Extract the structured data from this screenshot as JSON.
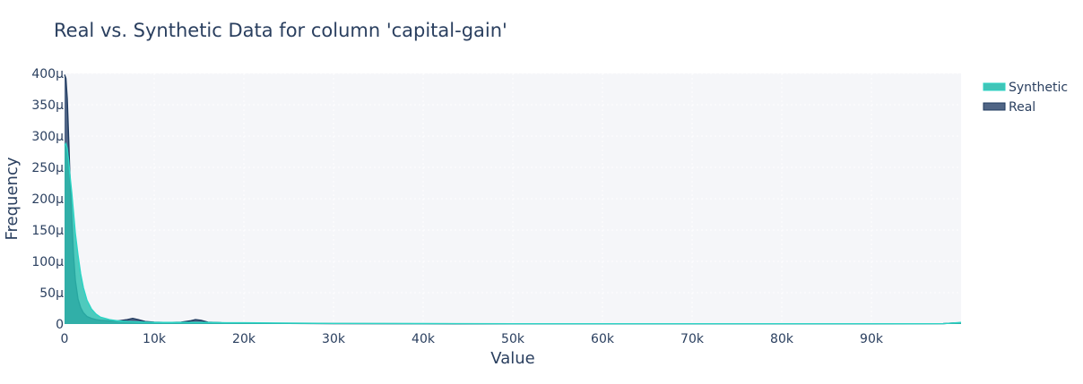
{
  "chart_data": {
    "type": "area",
    "title": "Real vs. Synthetic Data for column 'capital-gain'",
    "xlabel": "Value",
    "ylabel": "Frequency",
    "xlim": [
      0,
      100000
    ],
    "ylim": [
      0,
      400
    ],
    "y_unit": "μ",
    "x_ticks": [
      {
        "value": 0,
        "label": "0"
      },
      {
        "value": 10000,
        "label": "10k"
      },
      {
        "value": 20000,
        "label": "20k"
      },
      {
        "value": 30000,
        "label": "30k"
      },
      {
        "value": 40000,
        "label": "40k"
      },
      {
        "value": 50000,
        "label": "50k"
      },
      {
        "value": 60000,
        "label": "60k"
      },
      {
        "value": 70000,
        "label": "70k"
      },
      {
        "value": 80000,
        "label": "80k"
      },
      {
        "value": 90000,
        "label": "90k"
      }
    ],
    "y_ticks": [
      {
        "value": 0,
        "label": "0"
      },
      {
        "value": 50,
        "label": "50μ"
      },
      {
        "value": 100,
        "label": "100μ"
      },
      {
        "value": 150,
        "label": "150μ"
      },
      {
        "value": 200,
        "label": "200μ"
      },
      {
        "value": 250,
        "label": "250μ"
      },
      {
        "value": 300,
        "label": "300μ"
      },
      {
        "value": 350,
        "label": "350μ"
      },
      {
        "value": 400,
        "label": "400μ"
      }
    ],
    "grid": true,
    "legend_position": "top-right",
    "series": [
      {
        "name": "Real",
        "color": "#1f3a5f",
        "fill_color": "#3d5478",
        "x": [
          0,
          150,
          300,
          450,
          600,
          800,
          1000,
          1200,
          1500,
          1800,
          2100,
          2500,
          3000,
          3500,
          4000,
          5000,
          6000,
          7000,
          7600,
          8200,
          9000,
          10000,
          11000,
          12000,
          13000,
          14000,
          14600,
          15200,
          16000,
          17500,
          20000,
          25000,
          30000,
          40000,
          50000,
          60000,
          70000,
          80000,
          90000,
          98000,
          99000,
          100000
        ],
        "y": [
          398,
          392,
          360,
          300,
          235,
          170,
          110,
          70,
          40,
          26,
          18,
          12,
          9,
          7,
          6,
          5,
          5,
          7,
          9,
          7,
          4,
          3,
          2.5,
          2.5,
          3,
          5,
          7,
          6,
          3,
          2,
          1.5,
          1,
          0.6,
          0.4,
          0.3,
          0.2,
          0.2,
          0.2,
          0.3,
          0.6,
          1.5,
          2
        ]
      },
      {
        "name": "Synthetic",
        "color": "#2bd4c4",
        "fill_color": "#2bbfb0",
        "x": [
          0,
          150,
          300,
          450,
          600,
          800,
          1000,
          1200,
          1500,
          1800,
          2100,
          2500,
          3000,
          3500,
          4000,
          5000,
          6000,
          7000,
          8000,
          9000,
          10000,
          12000,
          14000,
          16000,
          18000,
          20000,
          25000,
          30000,
          40000,
          50000,
          60000,
          70000,
          80000,
          90000,
          98000,
          99000,
          100000
        ],
        "y": [
          285,
          288,
          280,
          262,
          238,
          210,
          178,
          145,
          110,
          80,
          58,
          38,
          24,
          16,
          11,
          7,
          5,
          4,
          3.5,
          3,
          2.5,
          2.5,
          2.5,
          2.5,
          2,
          2,
          1.5,
          1,
          0.7,
          0.5,
          0.5,
          0.4,
          0.4,
          0.4,
          0.6,
          1.5,
          2.5
        ]
      }
    ]
  }
}
